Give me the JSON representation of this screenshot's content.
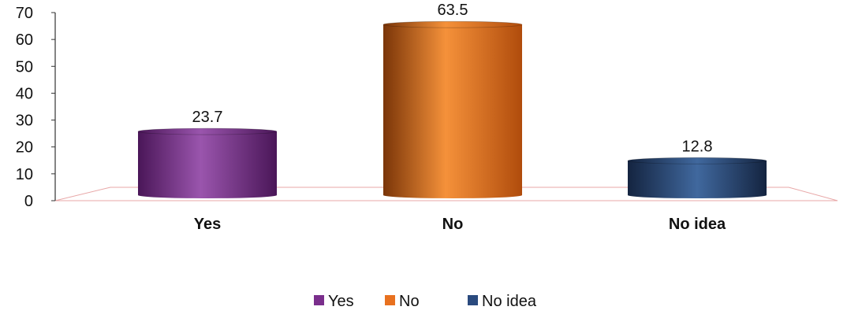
{
  "chart_data": {
    "type": "bar",
    "categories": [
      "Yes",
      "No",
      "No idea"
    ],
    "values": [
      23.7,
      63.5,
      12.8
    ],
    "data_labels": [
      "23.7",
      "63.5",
      "12.8"
    ],
    "ylim": [
      0,
      70
    ],
    "yticks": [
      "0",
      "10",
      "20",
      "30",
      "40",
      "50",
      "60",
      "70"
    ],
    "title": "",
    "xlabel": "",
    "ylabel": "",
    "grid": false,
    "legend": {
      "position": "bottom",
      "items": [
        "Yes",
        "No",
        "No idea"
      ]
    },
    "colors": {
      "Yes": "#7a2e8c",
      "No": "#e8711f",
      "No idea": "#2a4a7e"
    }
  }
}
